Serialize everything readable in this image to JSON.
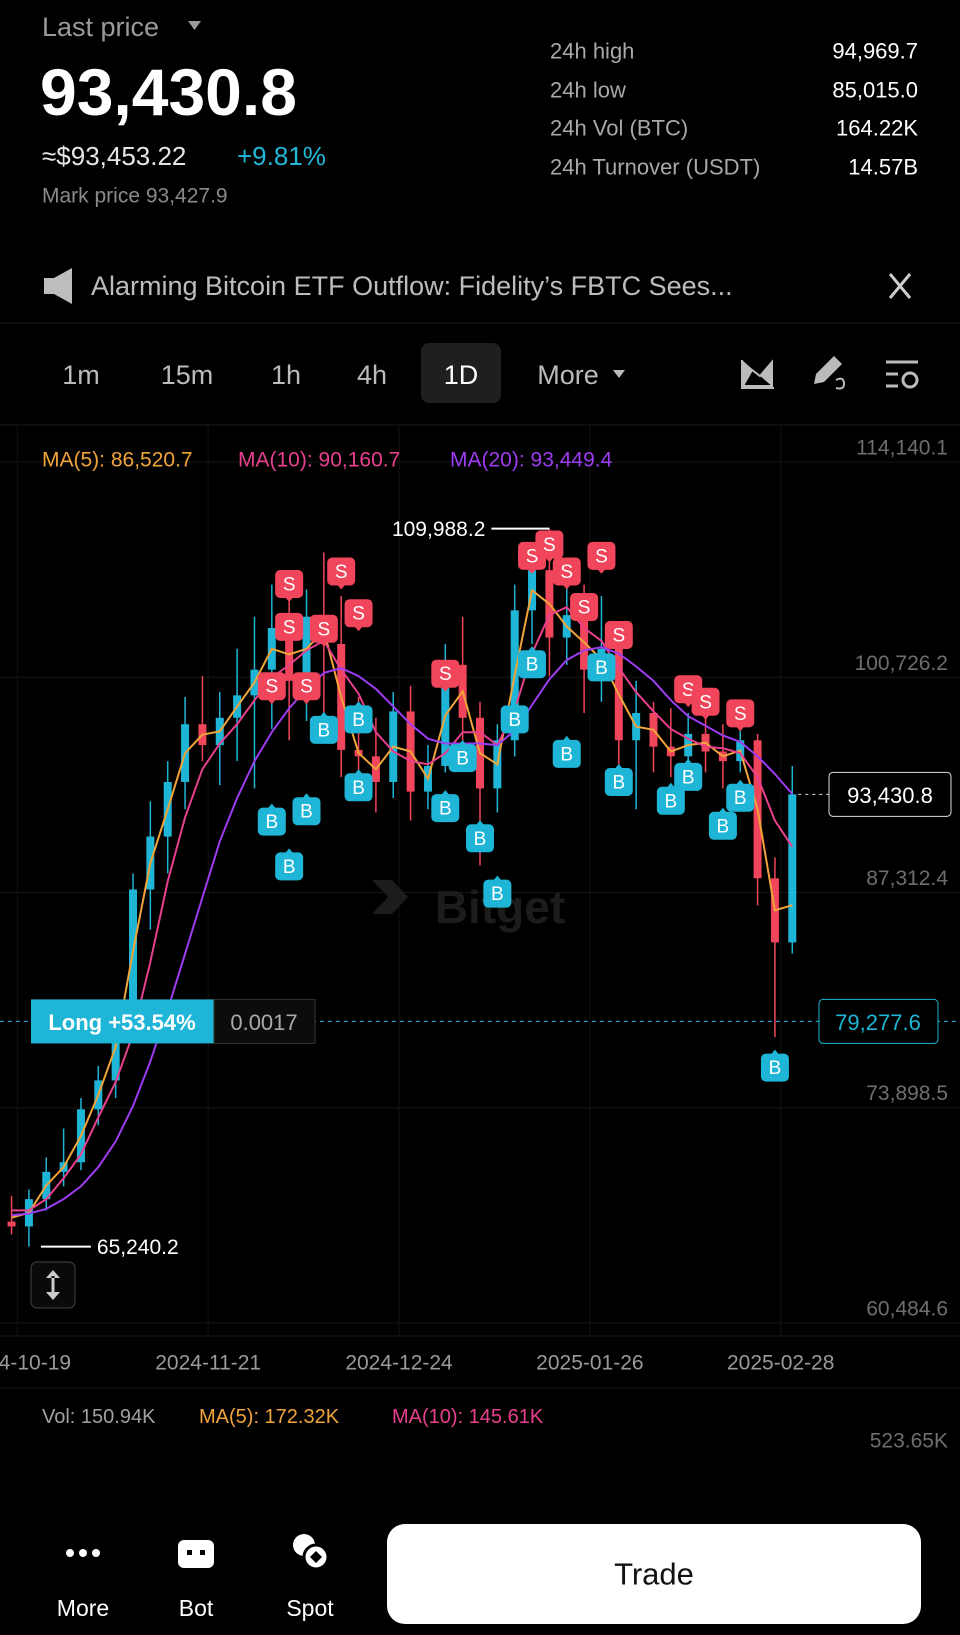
{
  "header": {
    "title": "Last price",
    "price": "93,430.8",
    "usd": "≈$93,453.22",
    "change": "+9.81%",
    "mark_price": "Mark price 93,427.9"
  },
  "stats": [
    {
      "label": "24h high",
      "value": "94,969.7"
    },
    {
      "label": "24h low",
      "value": "85,015.0"
    },
    {
      "label": "24h Vol (BTC)",
      "value": "164.22K"
    },
    {
      "label": "24h Turnover (USDT)",
      "value": "14.57B"
    }
  ],
  "news": "Alarming Bitcoin ETF Outflow: Fidelity’s FBTC Sees...",
  "tabs": [
    {
      "label": "1m",
      "active": false
    },
    {
      "label": "15m",
      "active": false
    },
    {
      "label": "1h",
      "active": false
    },
    {
      "label": "4h",
      "active": false
    },
    {
      "label": "1D",
      "active": true
    },
    {
      "label": "More",
      "active": false
    }
  ],
  "chart_data": {
    "type": "candlestick",
    "ma_legend": [
      {
        "text": "MA(5): 86,520.7",
        "color": "#f0a43a"
      },
      {
        "text": "MA(10): 90,160.7",
        "color": "#e8408e"
      },
      {
        "text": "MA(20): 93,449.4",
        "color": "#9d3cf0"
      }
    ],
    "x": [
      "2024-10-18",
      "2024-10-21",
      "2024-10-24",
      "2024-10-27",
      "2024-10-30",
      "2024-11-02",
      "2024-11-05",
      "2024-11-08",
      "2024-11-11",
      "2024-11-14",
      "2024-11-17",
      "2024-11-20",
      "2024-11-23",
      "2024-11-26",
      "2024-11-29",
      "2024-12-02",
      "2024-12-05",
      "2024-12-08",
      "2024-12-11",
      "2024-12-14",
      "2024-12-17",
      "2024-12-20",
      "2024-12-23",
      "2024-12-26",
      "2024-12-29",
      "2025-01-01",
      "2025-01-04",
      "2025-01-07",
      "2025-01-10",
      "2025-01-13",
      "2025-01-16",
      "2025-01-19",
      "2025-01-22",
      "2025-01-25",
      "2025-01-28",
      "2025-01-31",
      "2025-02-03",
      "2025-02-06",
      "2025-02-09",
      "2025-02-12",
      "2025-02-15",
      "2025-02-18",
      "2025-02-21",
      "2025-02-24",
      "2025-02-27",
      "2025-03-02"
    ],
    "open": [
      66800,
      66500,
      68200,
      69900,
      70500,
      73800,
      75600,
      79800,
      87500,
      90800,
      94200,
      97800,
      96500,
      98200,
      99600,
      101200,
      103800,
      100500,
      104500,
      102800,
      96200,
      95800,
      94200,
      98600,
      93600,
      95200,
      101500,
      98200,
      93800,
      96800,
      104900,
      107400,
      103200,
      104600,
      101200,
      102500,
      96800,
      98500,
      96400,
      95800,
      97200,
      96100,
      95500,
      96800,
      88200,
      84200
    ],
    "high": [
      68400,
      68800,
      70800,
      72600,
      74500,
      76500,
      80500,
      88500,
      93000,
      95500,
      99500,
      100800,
      99800,
      102500,
      104500,
      106500,
      107000,
      106200,
      108500,
      105800,
      99500,
      98200,
      99800,
      100200,
      96500,
      102800,
      104500,
      99200,
      97800,
      106500,
      108800,
      109988.2,
      106800,
      106500,
      105800,
      103500,
      100500,
      99200,
      98800,
      98500,
      98200,
      97800,
      98800,
      97200,
      89500,
      95200
    ],
    "low": [
      66000,
      65240.2,
      67500,
      69000,
      70000,
      72800,
      74500,
      79000,
      85000,
      88500,
      92500,
      95500,
      94000,
      95500,
      93800,
      97500,
      96800,
      98000,
      98500,
      94500,
      93500,
      92300,
      93200,
      91800,
      92500,
      94800,
      96500,
      89000,
      92300,
      95800,
      102800,
      100800,
      101500,
      98500,
      99200,
      93500,
      92500,
      94800,
      94500,
      94200,
      94800,
      93800,
      94800,
      86500,
      78300,
      83500
    ],
    "close": [
      66500,
      68200,
      69900,
      70500,
      73800,
      75600,
      79800,
      87500,
      90800,
      94200,
      97800,
      96500,
      98200,
      99600,
      101200,
      103800,
      100500,
      104500,
      102800,
      96200,
      95800,
      94200,
      98600,
      93600,
      95200,
      101500,
      98200,
      93800,
      96800,
      104900,
      107400,
      103200,
      104600,
      101200,
      102500,
      96800,
      98500,
      96400,
      95800,
      97200,
      96100,
      95500,
      96800,
      88200,
      84200,
      93430.8
    ],
    "up_color": "#1fb5d6",
    "down_color": "#f0455a",
    "series": [
      {
        "color": "#f0a43a",
        "values": [
          67050,
          67350,
          69050,
          70200,
          72150,
          74700,
          77700,
          83650,
          89150,
          92500,
          96000,
          97150,
          97350,
          98900,
          100400,
          102500,
          102150,
          102500,
          103650,
          99500,
          96000,
          95000,
          96400,
          96100,
          94400,
          98350,
          99850,
          96000,
          95300,
          100850,
          106150,
          105300,
          103900,
          102900,
          101850,
          99650,
          97650,
          97450,
          96100,
          96500,
          96650,
          95800,
          96150,
          92500,
          86200,
          86520.7
        ]
      },
      {
        "color": "#e8408e",
        "values": [
          67500,
          67500,
          68200,
          69500,
          71000,
          73300,
          75500,
          78500,
          83000,
          88000,
          92000,
          95000,
          96600,
          97800,
          99300,
          100700,
          101500,
          102400,
          103000,
          101200,
          99700,
          97300,
          96100,
          95500,
          95300,
          96000,
          97300,
          97300,
          96500,
          98700,
          102200,
          104600,
          105100,
          103800,
          103000,
          101300,
          99800,
          98600,
          97500,
          96900,
          96400,
          96300,
          96000,
          94500,
          91800,
          90160.7
        ]
      },
      {
        "color": "#9d3cf0",
        "values": [
          67200,
          67300,
          67600,
          68200,
          69000,
          70200,
          71800,
          74000,
          76800,
          80000,
          83500,
          87000,
          90500,
          93200,
          95500,
          97300,
          98800,
          100000,
          101000,
          101300,
          100800,
          100000,
          98900,
          97800,
          96900,
          96600,
          96600,
          96600,
          96500,
          97400,
          99000,
          100600,
          101800,
          102400,
          102600,
          102200,
          101400,
          100500,
          99300,
          98300,
          97700,
          97100,
          96700,
          95800,
          94700,
          93449.4
        ]
      }
    ],
    "xlim": [
      "2024-10-16",
      "2025-03-31"
    ],
    "xticks": [
      "2024-10-19",
      "2024-11-21",
      "2024-12-24",
      "2025-01-26",
      "2025-02-28"
    ],
    "ylim": [
      59670,
      116450
    ],
    "yticks": [
      {
        "value": 60484.6,
        "label": "60,484.6"
      },
      {
        "value": 73898.5,
        "label": "73,898.5"
      },
      {
        "value": 87312.4,
        "label": "87,312.4"
      },
      {
        "value": 100726.2,
        "label": "100,726.2"
      },
      {
        "value": 114140.1,
        "label": "114,140.1"
      }
    ],
    "grid": true,
    "high_marker": {
      "value": 109988.2,
      "label": "109,988.2"
    },
    "low_marker": {
      "value": 65240.2,
      "label": "65,240.2"
    },
    "last_price": {
      "value": 93430.8,
      "label": "93,430.8"
    },
    "position": {
      "value": 79277.6,
      "label": "79,277.6",
      "tag": "Long +53.54%",
      "size": "0.0017",
      "color": "#1fb5d6"
    },
    "marker_colors": {
      "S": "#f0455a",
      "B": "#1fb5d6"
    },
    "markers": [
      {
        "side": "S",
        "x": "2024-12-05",
        "price": 106540
      },
      {
        "side": "S",
        "x": "2024-12-14",
        "price": 107320
      },
      {
        "side": "S",
        "x": "2024-12-05",
        "price": 103870
      },
      {
        "side": "S",
        "x": "2024-12-11",
        "price": 103750
      },
      {
        "side": "S",
        "x": "2024-12-17",
        "price": 104720
      },
      {
        "side": "S",
        "x": "2024-12-02",
        "price": 100170
      },
      {
        "side": "S",
        "x": "2024-12-08",
        "price": 100170
      },
      {
        "side": "S",
        "x": "2025-01-01",
        "price": 100950
      },
      {
        "side": "S",
        "x": "2025-01-16",
        "price": 108290
      },
      {
        "side": "S",
        "x": "2025-01-19",
        "price": 109000
      },
      {
        "side": "S",
        "x": "2025-01-22",
        "price": 107320
      },
      {
        "side": "S",
        "x": "2025-01-28",
        "price": 108290
      },
      {
        "side": "S",
        "x": "2025-01-25",
        "price": 105110
      },
      {
        "side": "S",
        "x": "2025-01-31",
        "price": 103360
      },
      {
        "side": "S",
        "x": "2025-02-12",
        "price": 99980
      },
      {
        "side": "S",
        "x": "2025-02-15",
        "price": 99200
      },
      {
        "side": "S",
        "x": "2025-02-21",
        "price": 98480
      },
      {
        "side": "B",
        "x": "2024-12-02",
        "price": 91730
      },
      {
        "side": "B",
        "x": "2024-12-05",
        "price": 88940
      },
      {
        "side": "B",
        "x": "2024-12-08",
        "price": 92380
      },
      {
        "side": "B",
        "x": "2024-12-11",
        "price": 97450
      },
      {
        "side": "B",
        "x": "2024-12-17",
        "price": 98100
      },
      {
        "side": "B",
        "x": "2024-12-17",
        "price": 93870
      },
      {
        "side": "B",
        "x": "2025-01-04",
        "price": 95690
      },
      {
        "side": "B",
        "x": "2025-01-01",
        "price": 92570
      },
      {
        "side": "B",
        "x": "2025-01-07",
        "price": 90690
      },
      {
        "side": "B",
        "x": "2025-01-10",
        "price": 87240
      },
      {
        "side": "B",
        "x": "2025-01-16",
        "price": 101540
      },
      {
        "side": "B",
        "x": "2025-01-13",
        "price": 98100
      },
      {
        "side": "B",
        "x": "2025-01-22",
        "price": 95950
      },
      {
        "side": "B",
        "x": "2025-01-28",
        "price": 101340
      },
      {
        "side": "B",
        "x": "2025-01-31",
        "price": 94200
      },
      {
        "side": "B",
        "x": "2025-02-09",
        "price": 93030
      },
      {
        "side": "B",
        "x": "2025-02-12",
        "price": 94520
      },
      {
        "side": "B",
        "x": "2025-02-18",
        "price": 91470
      },
      {
        "side": "B",
        "x": "2025-02-21",
        "price": 93220
      },
      {
        "side": "B",
        "x": "2025-02-27",
        "price": 76400
      }
    ],
    "watermark": "Bitget"
  },
  "volume": {
    "legend": "Vol: 150.94K",
    "ma5": "MA(5): 172.32K",
    "ma10": "MA(10): 145.61K",
    "axis_label": "523.65K"
  },
  "nav": [
    {
      "label": "More"
    },
    {
      "label": "Bot"
    },
    {
      "label": "Spot"
    }
  ],
  "trade_button": "Trade"
}
